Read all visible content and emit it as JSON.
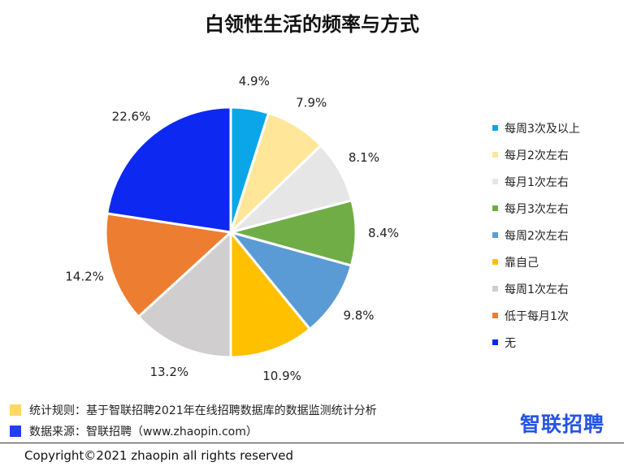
{
  "title": "白领性生活的频率与方式",
  "chart_data": {
    "type": "pie",
    "title": "白领性生活的频率与方式",
    "slices": [
      {
        "label": "每周3次及以上",
        "value": 4.9,
        "display": "4.9%",
        "color": "#0aa6e8"
      },
      {
        "label": "每月2次左右",
        "value": 7.9,
        "display": "7.9%",
        "color": "#ffe699"
      },
      {
        "label": "每月1次左右",
        "value": 8.1,
        "display": "8.1%",
        "color": "#e6e6e6"
      },
      {
        "label": "每月3次左右",
        "value": 8.4,
        "display": "8.4%",
        "color": "#70ad47"
      },
      {
        "label": "每周2次左右",
        "value": 9.8,
        "display": "9.8%",
        "color": "#5b9bd5"
      },
      {
        "label": "靠自己",
        "value": 10.9,
        "display": "10.9%",
        "color": "#ffc000"
      },
      {
        "label": "每周1次左右",
        "value": 13.2,
        "display": "13.2%",
        "color": "#d0cece"
      },
      {
        "label": "低于每月1次",
        "value": 14.2,
        "display": "14.2%",
        "color": "#ed7d31"
      },
      {
        "label": "无",
        "value": 22.6,
        "display": "22.6%",
        "color": "#0d28f0"
      }
    ],
    "legend_position": "right"
  },
  "footer": {
    "rule_note": "统计规则：基于智联招聘2021年在线招聘数据库的数据监测统计分析",
    "rule_color": "#ffd966",
    "source_note": "数据来源：智联招聘（www.zhaopin.com）",
    "source_color": "#1f3ff0",
    "logo": "智联招聘",
    "copyright": "Copyright©2021 zhaopin all rights reserved"
  }
}
